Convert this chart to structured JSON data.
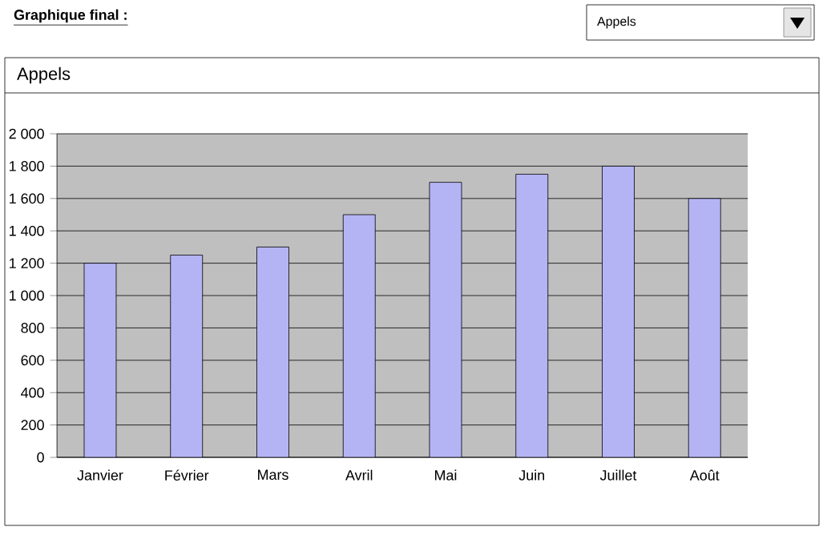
{
  "chart_data": {
    "type": "bar",
    "title": "Appels",
    "annotations": [
      "Graphique final :",
      "Appels"
    ],
    "categories": [
      "Janvier",
      "Février",
      "Mars",
      "Avril",
      "Mai",
      "Juin",
      "Juillet",
      "Août"
    ],
    "values": [
      1200,
      1250,
      1300,
      1500,
      1700,
      1750,
      1800,
      1600
    ],
    "color": "#b4b4f5",
    "ylim": [
      0,
      2000
    ],
    "yticks": [
      0,
      200,
      400,
      600,
      800,
      {
        "value": 1000,
        "label": "1 000"
      },
      {
        "value": 1200,
        "label": "1 200"
      },
      {
        "value": 1400,
        "label": "1 400"
      },
      {
        "value": 1600,
        "label": "1 600"
      },
      {
        "value": 1800,
        "label": "1 800"
      },
      {
        "value": 2000,
        "label": "2 000"
      }
    ],
    "grid": "y"
  }
}
